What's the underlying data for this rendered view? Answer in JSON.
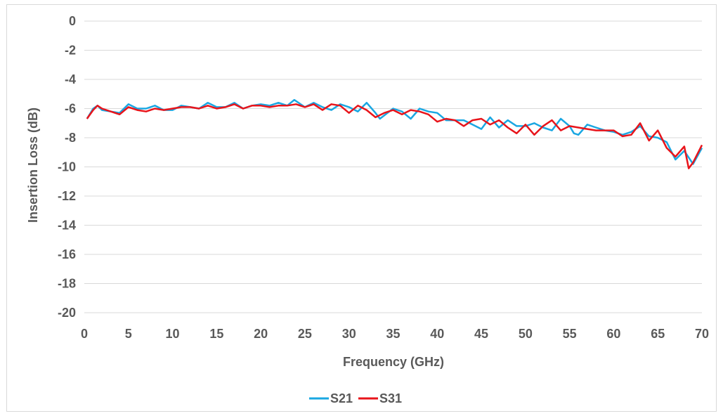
{
  "chart_data": {
    "type": "line",
    "title": "",
    "xlabel": "Frequency (GHz)",
    "ylabel": "Insertion Loss (dB)",
    "xlim": [
      0,
      70
    ],
    "ylim": [
      -20,
      0
    ],
    "x_ticks": [
      "0",
      "5",
      "10",
      "15",
      "20",
      "25",
      "30",
      "35",
      "40",
      "45",
      "50",
      "55",
      "60",
      "65",
      "70"
    ],
    "y_ticks": [
      "0",
      "-2",
      "-4",
      "-6",
      "-8",
      "-10",
      "-12",
      "-14",
      "-16",
      "-18",
      "-20"
    ],
    "grid": "horizontal",
    "legend_position": "bottom",
    "series": [
      {
        "name": "S21",
        "color": "#1aa7e2",
        "points": [
          [
            0.3,
            -6.7
          ],
          [
            1,
            -6.0
          ],
          [
            1.5,
            -5.8
          ],
          [
            2,
            -6.1
          ],
          [
            3,
            -6.2
          ],
          [
            4,
            -6.3
          ],
          [
            5,
            -5.7
          ],
          [
            6,
            -6.0
          ],
          [
            7,
            -6.0
          ],
          [
            8,
            -5.8
          ],
          [
            9,
            -6.1
          ],
          [
            10,
            -6.1
          ],
          [
            11,
            -5.8
          ],
          [
            12,
            -5.9
          ],
          [
            13,
            -6.0
          ],
          [
            14,
            -5.6
          ],
          [
            15,
            -5.9
          ],
          [
            16,
            -5.9
          ],
          [
            17,
            -5.6
          ],
          [
            18,
            -6.0
          ],
          [
            19,
            -5.8
          ],
          [
            20,
            -5.7
          ],
          [
            21,
            -5.8
          ],
          [
            22,
            -5.6
          ],
          [
            23,
            -5.8
          ],
          [
            23.8,
            -5.4
          ],
          [
            25,
            -5.9
          ],
          [
            26,
            -5.6
          ],
          [
            27,
            -5.9
          ],
          [
            28,
            -6.1
          ],
          [
            29,
            -5.7
          ],
          [
            30,
            -5.9
          ],
          [
            31,
            -6.2
          ],
          [
            32,
            -5.6
          ],
          [
            33,
            -6.3
          ],
          [
            33.5,
            -6.7
          ],
          [
            35,
            -6.0
          ],
          [
            36,
            -6.2
          ],
          [
            37,
            -6.7
          ],
          [
            38,
            -6.0
          ],
          [
            39,
            -6.2
          ],
          [
            40,
            -6.3
          ],
          [
            41,
            -6.8
          ],
          [
            42,
            -6.8
          ],
          [
            43,
            -6.8
          ],
          [
            44,
            -7.1
          ],
          [
            45,
            -7.4
          ],
          [
            46,
            -6.6
          ],
          [
            47,
            -7.3
          ],
          [
            48,
            -6.8
          ],
          [
            49,
            -7.2
          ],
          [
            50,
            -7.2
          ],
          [
            51,
            -7.0
          ],
          [
            52,
            -7.3
          ],
          [
            53,
            -7.5
          ],
          [
            54,
            -6.7
          ],
          [
            55,
            -7.2
          ],
          [
            55.5,
            -7.7
          ],
          [
            56,
            -7.8
          ],
          [
            57,
            -7.1
          ],
          [
            58,
            -7.3
          ],
          [
            59,
            -7.5
          ],
          [
            60,
            -7.6
          ],
          [
            61,
            -7.8
          ],
          [
            62,
            -7.6
          ],
          [
            63,
            -7.2
          ],
          [
            64,
            -7.9
          ],
          [
            65,
            -8.0
          ],
          [
            66,
            -8.3
          ],
          [
            67,
            -9.5
          ],
          [
            68,
            -8.9
          ],
          [
            69,
            -9.8
          ],
          [
            70,
            -8.7
          ]
        ]
      },
      {
        "name": "S31",
        "color": "#e8141b",
        "points": [
          [
            0.3,
            -6.7
          ],
          [
            1,
            -6.1
          ],
          [
            1.5,
            -5.8
          ],
          [
            2,
            -6.0
          ],
          [
            3,
            -6.2
          ],
          [
            4,
            -6.4
          ],
          [
            5,
            -5.9
          ],
          [
            6,
            -6.1
          ],
          [
            7,
            -6.2
          ],
          [
            8,
            -6.0
          ],
          [
            9,
            -6.1
          ],
          [
            10,
            -6.0
          ],
          [
            11,
            -5.9
          ],
          [
            12,
            -5.9
          ],
          [
            13,
            -6.0
          ],
          [
            14,
            -5.8
          ],
          [
            15,
            -6.0
          ],
          [
            16,
            -5.9
          ],
          [
            17,
            -5.7
          ],
          [
            18,
            -6.0
          ],
          [
            19,
            -5.8
          ],
          [
            20,
            -5.8
          ],
          [
            21,
            -5.9
          ],
          [
            22,
            -5.8
          ],
          [
            23,
            -5.8
          ],
          [
            24,
            -5.7
          ],
          [
            25,
            -5.9
          ],
          [
            26,
            -5.7
          ],
          [
            27,
            -6.1
          ],
          [
            28,
            -5.7
          ],
          [
            29,
            -5.8
          ],
          [
            30,
            -6.3
          ],
          [
            31,
            -5.8
          ],
          [
            32,
            -6.1
          ],
          [
            33,
            -6.6
          ],
          [
            34,
            -6.3
          ],
          [
            35,
            -6.1
          ],
          [
            36,
            -6.4
          ],
          [
            37,
            -6.1
          ],
          [
            38,
            -6.2
          ],
          [
            39,
            -6.4
          ],
          [
            40,
            -6.9
          ],
          [
            41,
            -6.7
          ],
          [
            42,
            -6.8
          ],
          [
            43,
            -7.2
          ],
          [
            44,
            -6.8
          ],
          [
            45,
            -6.7
          ],
          [
            46,
            -7.1
          ],
          [
            47,
            -6.8
          ],
          [
            48,
            -7.3
          ],
          [
            49,
            -7.7
          ],
          [
            50,
            -7.1
          ],
          [
            51,
            -7.8
          ],
          [
            52,
            -7.2
          ],
          [
            53,
            -6.8
          ],
          [
            54,
            -7.5
          ],
          [
            55,
            -7.2
          ],
          [
            56,
            -7.3
          ],
          [
            57,
            -7.4
          ],
          [
            58,
            -7.5
          ],
          [
            59,
            -7.5
          ],
          [
            60,
            -7.5
          ],
          [
            61,
            -7.9
          ],
          [
            62,
            -7.8
          ],
          [
            63,
            -7.0
          ],
          [
            64,
            -8.2
          ],
          [
            65,
            -7.5
          ],
          [
            66,
            -8.7
          ],
          [
            67,
            -9.3
          ],
          [
            68,
            -8.6
          ],
          [
            68.5,
            -10.1
          ],
          [
            69,
            -9.7
          ],
          [
            70,
            -8.5
          ]
        ]
      }
    ]
  }
}
